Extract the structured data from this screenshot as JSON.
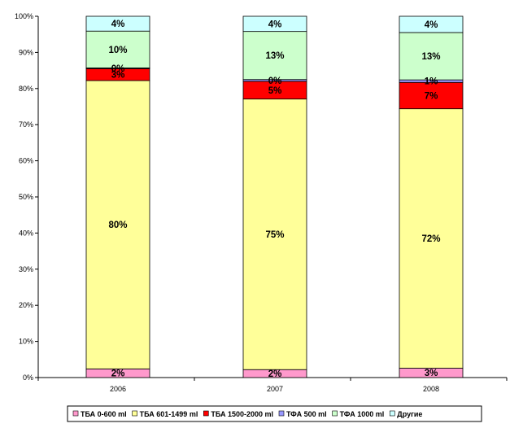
{
  "chart_data": {
    "type": "bar",
    "stacked": true,
    "percent_stacked": true,
    "categories": [
      "2006",
      "2007",
      "2008"
    ],
    "y_ticks": [
      "0%",
      "10%",
      "20%",
      "30%",
      "40%",
      "50%",
      "60%",
      "70%",
      "80%",
      "90%",
      "100%"
    ],
    "ylim": [
      0,
      100
    ],
    "grid": false,
    "legend_position": "bottom",
    "series": [
      {
        "name": "ТБА 0-600 ml",
        "color": "#FF99CC",
        "values": [
          2.4,
          2.2,
          2.6
        ],
        "labels": [
          "2%",
          "2%",
          "3%"
        ]
      },
      {
        "name": "ТБА 601-1499 ml",
        "color": "#FFFF99",
        "values": [
          79.8,
          74.9,
          71.8
        ],
        "labels": [
          "80%",
          "75%",
          "72%"
        ]
      },
      {
        "name": "ТБА 1500-2000 ml",
        "color": "#FF0000",
        "values": [
          3.3,
          4.9,
          7.3
        ],
        "labels": [
          "3%",
          "5%",
          "7%"
        ]
      },
      {
        "name": "ТФА 500 ml",
        "color": "#9999FF",
        "values": [
          0.2,
          0.5,
          0.7
        ],
        "labels": [
          "0%",
          "0%",
          "1%"
        ]
      },
      {
        "name": "ТФА 1000 ml",
        "color": "#CCFFCC",
        "values": [
          10.2,
          13.3,
          13.1
        ],
        "labels": [
          "10%",
          "13%",
          "13%"
        ]
      },
      {
        "name": "Другие",
        "color": "#CCFFFF",
        "values": [
          4.1,
          4.2,
          4.5
        ],
        "labels": [
          "4%",
          "4%",
          "4%"
        ]
      }
    ]
  }
}
